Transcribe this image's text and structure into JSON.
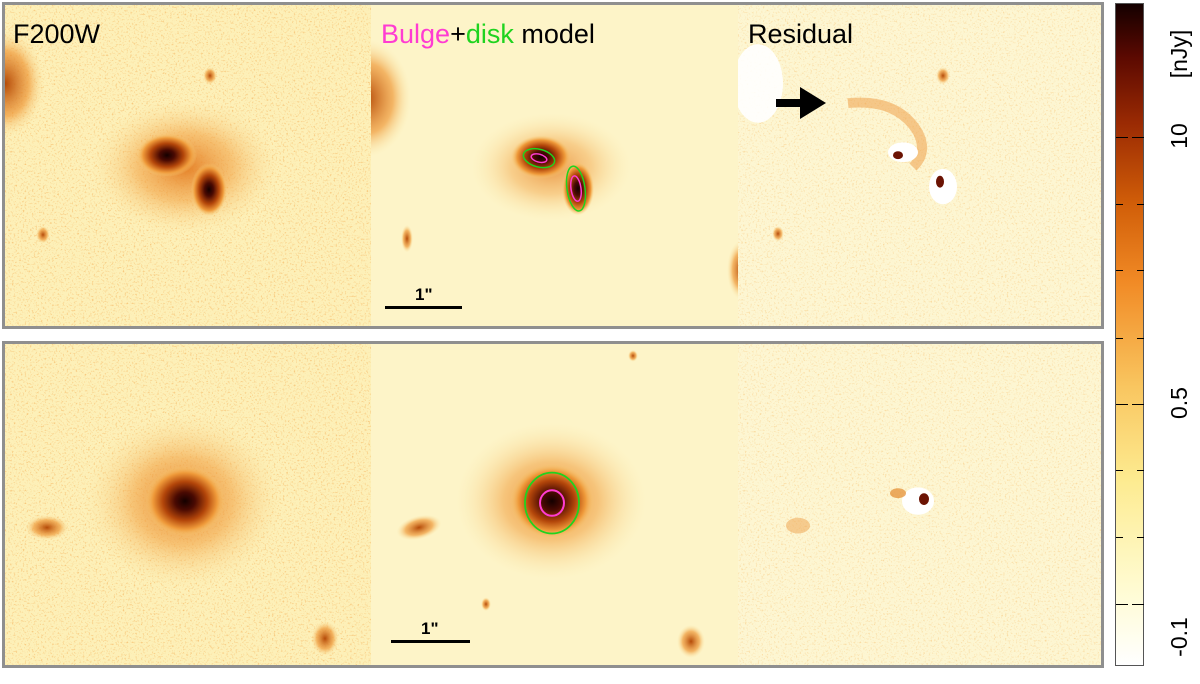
{
  "figure": {
    "top_row": {
      "panel1_label": "F200W",
      "panel2_label_bulge": "Bulge",
      "panel2_label_plus": "+",
      "panel2_label_disk": "disk",
      "panel2_label_model": " model",
      "panel3_label": "Residual",
      "scale_label": "1\""
    },
    "bottom_row": {
      "scale_label": "1\""
    },
    "colorbar": {
      "unit_label": "[nJy]",
      "ticks": [
        "10",
        "0.5",
        "-0.1"
      ]
    }
  },
  "colors": {
    "bulge": "#ff3cd2",
    "disk": "#1fd31f",
    "background": "#fdf4c8"
  }
}
